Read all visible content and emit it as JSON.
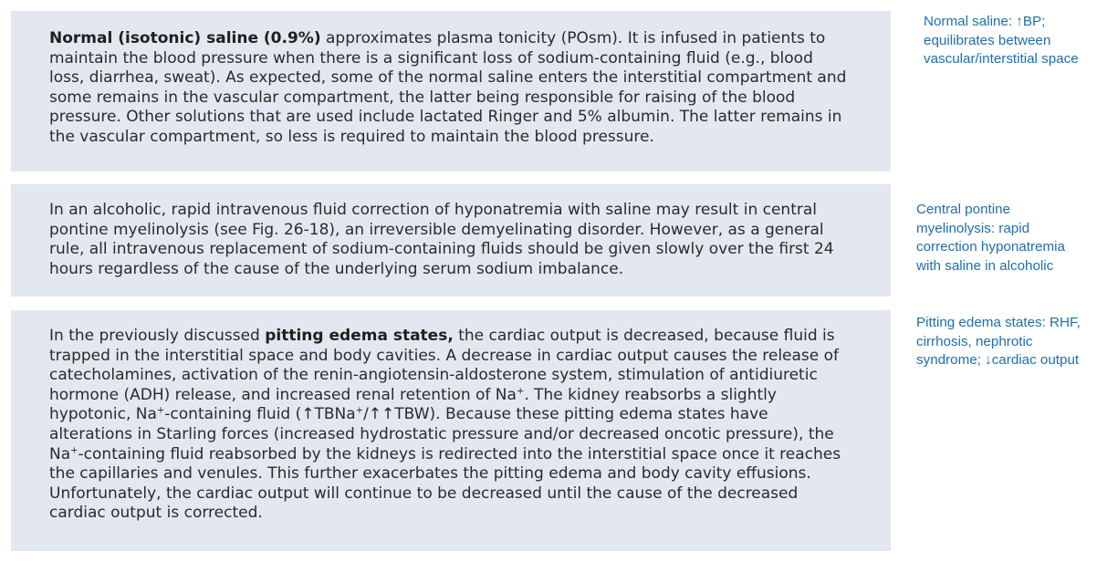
{
  "blocks": [
    {
      "bold_lead": "Normal (isotonic) saline (0.9%)",
      "text": " approximates plasma tonicity (POsm). It is infused in patients to maintain the blood pressure when there is a significant loss of sodium-containing fluid (e.g., blood loss, diarrhea, sweat). As expected, some of the normal saline enters the interstitial compartment and some remains in the vascular compartment, the latter being responsible for raising of the blood pressure. Other solutions that are used include lactated Ringer and 5% albumin. The latter remains in the vascular compartment, so less is required to maintain the blood pressure."
    },
    {
      "text": "In an alcoholic, rapid intravenous fluid correction of hyponatremia with saline may result in central pontine myelinolysis (see Fig. 26-18), an irreversible demyelinating disorder. However, as a general rule, all intravenous replacement of sodium-containing fluids should be given slowly over the first 24 hours regardless of the cause of the underlying serum sodium imbalance."
    },
    {
      "text_before": "In the previously discussed ",
      "bold": "pitting edema states,",
      "text_a": " the cardiac output is decreased, because fluid is trapped in the interstitial space and body cavities. A decrease in cardiac output causes the release of catecholamines, activation of the renin-angiotensin-aldosterone system, stimulation of antidiuretic hormone (ADH) release, and increased renal retention of Na",
      "sup1": "+",
      "text_b": ". The kidney reabsorbs a slightly hypotonic, Na",
      "sup2": "+",
      "text_c": "-containing fluid (↑TBNa",
      "sup3": "+",
      "text_d": "/↑↑TBW). Because these pitting edema states have alterations in Starling forces (increased hydrostatic pressure and/or decreased oncotic pressure), the Na",
      "sup4": "+",
      "text_e": "-containing fluid reabsorbed by the kidneys is redirected into the interstitial space once it reaches the capillaries and venules. This further exacerbates the pitting edema and body cavity effusions. Unfortunately, the cardiac output will continue to be decreased until the cause of the decreased cardiac output is corrected."
    }
  ],
  "margin_notes": [
    "Normal saline: ↑BP; equilibrates between vascular/interstitial space",
    "Central pontine myelinolysis: rapid correction hyponatremia with saline in alcoholic",
    "Pitting edema states: RHF, cirrhosis, nephrotic syndrome; ↓cardiac output"
  ],
  "colors": {
    "box_background": "#e3e8f0",
    "body_text": "#2a2a2a",
    "margin_note_text": "#1f6fa8"
  }
}
